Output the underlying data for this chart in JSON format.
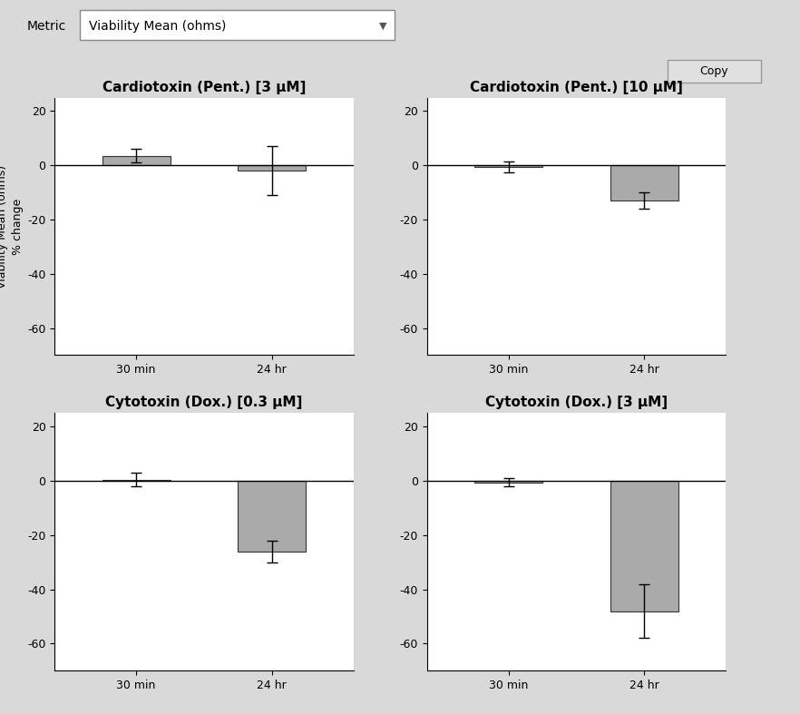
{
  "plots": [
    {
      "title": "Cardiotoxin (Pent.) [3 μM]",
      "values": [
        3.5,
        -2.0
      ],
      "errors": [
        2.5,
        9.0
      ],
      "categories": [
        "30 min",
        "24 hr"
      ]
    },
    {
      "title": "Cardiotoxin (Pent.) [10 μM]",
      "values": [
        -0.5,
        -13.0
      ],
      "errors": [
        2.0,
        3.0
      ],
      "categories": [
        "30 min",
        "24 hr"
      ]
    },
    {
      "title": "Cytotoxin (Dox.) [0.3 μM]",
      "values": [
        0.5,
        -26.0
      ],
      "errors": [
        2.5,
        4.0
      ],
      "categories": [
        "30 min",
        "24 hr"
      ]
    },
    {
      "title": "Cytotoxin (Dox.) [3 μM]",
      "values": [
        -0.5,
        -48.0
      ],
      "errors": [
        1.5,
        10.0
      ],
      "categories": [
        "30 min",
        "24 hr"
      ]
    }
  ],
  "ylabel": "Viability Mean (ohms)\n% change",
  "ylim": [
    -70,
    25
  ],
  "yticks": [
    20,
    0,
    -20,
    -40,
    -60
  ],
  "bar_color": "#aaaaaa",
  "bar_edge_color": "#333333",
  "background_plot": "#ffffff",
  "title_fontsize": 11,
  "axis_fontsize": 9,
  "tick_fontsize": 9,
  "widget_label": "Metric",
  "widget_value": "Viability Mean (ohms)",
  "copy_button": "Copy",
  "outer_bg": "#d9d9d9",
  "panel_bg": "#d9d9d9"
}
